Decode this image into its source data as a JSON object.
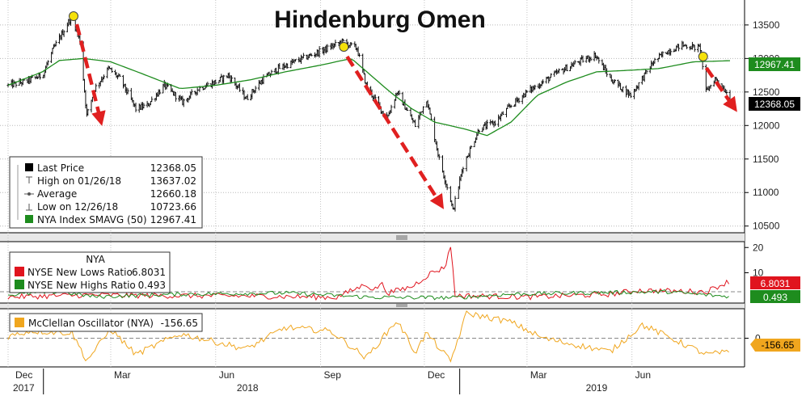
{
  "title": "Hindenburg Omen",
  "x_axis": {
    "months": [
      "Dec",
      "Mar",
      "Jun",
      "Sep",
      "Dec",
      "Mar",
      "Jun"
    ],
    "years": [
      "2017",
      "2018",
      "2019"
    ]
  },
  "legend_main": {
    "rows": [
      {
        "label": "Last Price",
        "value": "12368.05",
        "icon": "solid-square"
      },
      {
        "label": "High on 01/26/18",
        "value": "13637.02",
        "icon": "high-marker"
      },
      {
        "label": "Average",
        "value": "12660.18",
        "icon": "average-marker"
      },
      {
        "label": "Low on 12/26/18",
        "value": "10723.66",
        "icon": "low-marker"
      },
      {
        "label": "NYA Index SMAVG (50)",
        "value": "12967.41",
        "icon": "green-square"
      }
    ]
  },
  "legend_ratio": {
    "header": "NYA",
    "rows": [
      {
        "label": "NYSE New Lows Ratio",
        "value": "6.8031"
      },
      {
        "label": "NYSE New Highs Ratio",
        "value": "0.493"
      }
    ]
  },
  "legend_osc": {
    "label": "McClellan Oscillator (NYA)",
    "value": "-156.65"
  },
  "tags": {
    "sma": "12967.41",
    "last": "12368.05",
    "lows": "6.8031",
    "highs": "0.493",
    "osc": "-156.65"
  },
  "colors": {
    "price": "#111111",
    "sma": "#1e8c1e",
    "lows": "#e0141e",
    "highs": "#1e8c1e",
    "osc": "#f0a61e",
    "arrow": "#e02020",
    "marker": "#f5e10a"
  },
  "chart_data": [
    {
      "type": "line",
      "title": "Hindenburg Omen",
      "yticks": [
        10500,
        11000,
        11500,
        12000,
        12500,
        13000,
        13500
      ],
      "ylim": [
        10400,
        13800
      ],
      "series": [
        {
          "name": "Last Price",
          "style": "ohlc-bars",
          "points": [
            [
              "2017-12-01",
              12600
            ],
            [
              "2017-12-15",
              12650
            ],
            [
              "2017-12-31",
              12750
            ],
            [
              "2018-01-10",
              13150
            ],
            [
              "2018-01-26",
              13637
            ],
            [
              "2018-02-02",
              13250
            ],
            [
              "2018-02-08",
              12150
            ],
            [
              "2018-02-15",
              12550
            ],
            [
              "2018-02-27",
              12850
            ],
            [
              "2018-03-09",
              12700
            ],
            [
              "2018-03-23",
              12250
            ],
            [
              "2018-04-02",
              12300
            ],
            [
              "2018-04-17",
              12600
            ],
            [
              "2018-05-03",
              12350
            ],
            [
              "2018-05-17",
              12550
            ],
            [
              "2018-06-01",
              12650
            ],
            [
              "2018-06-12",
              12750
            ],
            [
              "2018-06-28",
              12400
            ],
            [
              "2018-07-13",
              12700
            ],
            [
              "2018-07-26",
              12850
            ],
            [
              "2018-08-09",
              12950
            ],
            [
              "2018-08-24",
              13050
            ],
            [
              "2018-09-07",
              13150
            ],
            [
              "2018-09-20",
              13250
            ],
            [
              "2018-10-03",
              13150
            ],
            [
              "2018-10-11",
              12600
            ],
            [
              "2018-10-29",
              12100
            ],
            [
              "2018-11-07",
              12500
            ],
            [
              "2018-11-23",
              12000
            ],
            [
              "2018-12-03",
              12400
            ],
            [
              "2018-12-14",
              11500
            ],
            [
              "2018-12-24",
              10900
            ],
            [
              "2018-12-26",
              10724
            ],
            [
              "2019-01-04",
              11400
            ],
            [
              "2019-01-18",
              11950
            ],
            [
              "2019-02-01",
              12050
            ],
            [
              "2019-02-15",
              12300
            ],
            [
              "2019-03-01",
              12500
            ],
            [
              "2019-03-15",
              12650
            ],
            [
              "2019-03-29",
              12800
            ],
            [
              "2019-04-15",
              12950
            ],
            [
              "2019-04-30",
              13050
            ],
            [
              "2019-05-13",
              12700
            ],
            [
              "2019-05-31",
              12450
            ],
            [
              "2019-06-20",
              12950
            ],
            [
              "2019-07-01",
              13100
            ],
            [
              "2019-07-15",
              13200
            ],
            [
              "2019-07-31",
              13150
            ],
            [
              "2019-08-05",
              12500
            ],
            [
              "2019-08-13",
              12700
            ],
            [
              "2019-08-23",
              12500
            ],
            [
              "2019-08-26",
              12368
            ]
          ]
        },
        {
          "name": "NYA Index SMAVG (50)",
          "points": [
            [
              "2017-12-01",
              12600
            ],
            [
              "2017-12-31",
              12800
            ],
            [
              "2018-01-15",
              12970
            ],
            [
              "2018-02-05",
              13000
            ],
            [
              "2018-03-01",
              12950
            ],
            [
              "2018-04-01",
              12750
            ],
            [
              "2018-05-01",
              12550
            ],
            [
              "2018-06-01",
              12600
            ],
            [
              "2018-07-01",
              12680
            ],
            [
              "2018-08-01",
              12800
            ],
            [
              "2018-09-01",
              12900
            ],
            [
              "2018-09-28",
              13000
            ],
            [
              "2018-10-15",
              12750
            ],
            [
              "2018-11-01",
              12500
            ],
            [
              "2018-11-20",
              12250
            ],
            [
              "2018-12-10",
              12050
            ],
            [
              "2019-01-05",
              11950
            ],
            [
              "2019-01-25",
              11850
            ],
            [
              "2019-02-15",
              12050
            ],
            [
              "2019-03-10",
              12450
            ],
            [
              "2019-04-05",
              12650
            ],
            [
              "2019-05-01",
              12800
            ],
            [
              "2019-05-25",
              12820
            ],
            [
              "2019-06-25",
              12850
            ],
            [
              "2019-07-25",
              12950
            ],
            [
              "2019-08-26",
              12967
            ]
          ]
        }
      ]
    },
    {
      "type": "line",
      "title": "NYA",
      "yticks": [
        10,
        20
      ],
      "ylim": [
        -2,
        22
      ],
      "series": [
        {
          "name": "NYSE New Lows Ratio",
          "points": [
            [
              "2017-12-01",
              0.4
            ],
            [
              "2018-02-09",
              1.2
            ],
            [
              "2018-03-23",
              1.0
            ],
            [
              "2018-06-28",
              0.8
            ],
            [
              "2018-09-15",
              0.3
            ],
            [
              "2018-10-11",
              5.5
            ],
            [
              "2018-10-18",
              3.0
            ],
            [
              "2018-10-24",
              6.0
            ],
            [
              "2018-10-30",
              2.0
            ],
            [
              "2018-11-20",
              4.5
            ],
            [
              "2018-12-07",
              10.0
            ],
            [
              "2018-12-19",
              12.0
            ],
            [
              "2018-12-24",
              21.0
            ],
            [
              "2018-12-28",
              1.0
            ],
            [
              "2019-03-01",
              0.4
            ],
            [
              "2019-05-13",
              1.5
            ],
            [
              "2019-06-05",
              3.0
            ],
            [
              "2019-08-05",
              2.5
            ],
            [
              "2019-08-26",
              6.8031
            ]
          ]
        },
        {
          "name": "NYSE New Highs Ratio",
          "points": [
            [
              "2017-12-01",
              1.2
            ],
            [
              "2018-01-15",
              2.5
            ],
            [
              "2018-02-15",
              0.5
            ],
            [
              "2018-05-01",
              1.5
            ],
            [
              "2018-08-01",
              2.0
            ],
            [
              "2018-10-15",
              0.3
            ],
            [
              "2018-12-26",
              0.1
            ],
            [
              "2019-02-15",
              1.5
            ],
            [
              "2019-04-15",
              2.0
            ],
            [
              "2019-07-01",
              2.5
            ],
            [
              "2019-08-26",
              0.493
            ]
          ]
        }
      ]
    },
    {
      "type": "line",
      "title": "McClellan Oscillator (NYA)",
      "yticks": [
        0
      ],
      "ylim": [
        -320,
        320
      ],
      "series": [
        {
          "name": "McClellan Oscillator (NYA)",
          "points": [
            [
              "2017-12-01",
              20
            ],
            [
              "2017-12-20",
              80
            ],
            [
              "2018-01-26",
              60
            ],
            [
              "2018-02-08",
              -250
            ],
            [
              "2018-03-01",
              100
            ],
            [
              "2018-03-23",
              -180
            ],
            [
              "2018-05-01",
              50
            ],
            [
              "2018-06-28",
              -120
            ],
            [
              "2018-08-01",
              120
            ],
            [
              "2018-09-10",
              80
            ],
            [
              "2018-10-11",
              -220
            ],
            [
              "2018-11-07",
              200
            ],
            [
              "2018-11-23",
              -160
            ],
            [
              "2018-12-03",
              60
            ],
            [
              "2018-12-24",
              -260
            ],
            [
              "2019-01-07",
              280
            ],
            [
              "2019-02-15",
              180
            ],
            [
              "2019-03-15",
              0
            ],
            [
              "2019-05-13",
              -150
            ],
            [
              "2019-06-10",
              150
            ],
            [
              "2019-08-05",
              -180
            ],
            [
              "2019-08-26",
              -156.65
            ]
          ]
        }
      ]
    }
  ],
  "signals": [
    {
      "peak": "2018-01-26",
      "arrow_end": "2018-02-20"
    },
    {
      "peak": "2018-09-20",
      "arrow_end": "2018-12-15"
    },
    {
      "peak": "2019-08-01",
      "arrow_end": "2019-08-29"
    }
  ]
}
